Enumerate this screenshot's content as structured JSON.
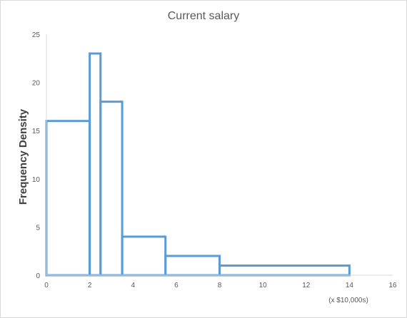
{
  "chart_data": {
    "type": "histogram",
    "title": "Current salary",
    "xlabel": "(x $10,000s)",
    "ylabel": "Frequency Density",
    "xlim": [
      0,
      16
    ],
    "ylim": [
      0,
      25
    ],
    "x_ticks": [
      0,
      2,
      4,
      6,
      8,
      10,
      12,
      14,
      16
    ],
    "y_ticks": [
      0,
      5,
      10,
      15,
      20,
      25
    ],
    "grid": false,
    "series_color": "#5b9bd5",
    "bins": [
      {
        "x0": 0,
        "x1": 2,
        "value": 16
      },
      {
        "x0": 2,
        "x1": 2.5,
        "value": 23
      },
      {
        "x0": 2.5,
        "x1": 3.5,
        "value": 18
      },
      {
        "x0": 3.5,
        "x1": 5.5,
        "value": 4
      },
      {
        "x0": 5.5,
        "x1": 8,
        "value": 2
      },
      {
        "x0": 8,
        "x1": 14,
        "value": 1
      }
    ]
  }
}
